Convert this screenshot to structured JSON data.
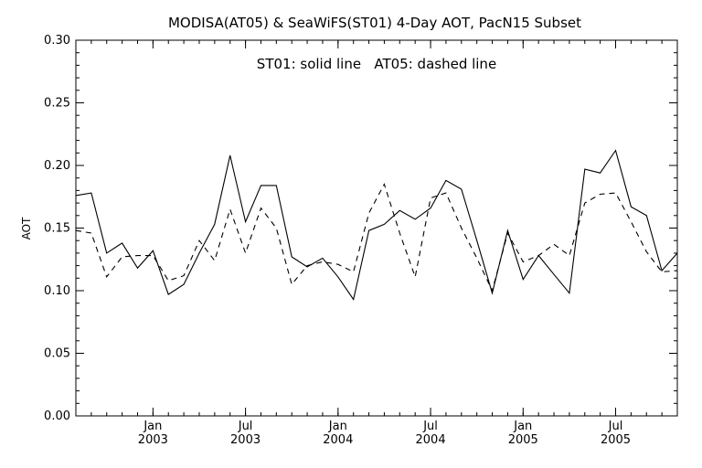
{
  "chart_data": {
    "type": "line",
    "title": "MODISA(AT05) & SeaWiFS(ST01) 4-Day AOT, PacN15 Subset",
    "annotation": "ST01: solid line   AT05: dashed line",
    "xlabel": "",
    "ylabel": "AOT",
    "ylim": [
      0.0,
      0.3
    ],
    "xlim": [
      "2002-08",
      "2005-11"
    ],
    "grid": false,
    "y_ticks": [
      "0.00",
      "0.05",
      "0.10",
      "0.15",
      "0.20",
      "0.25",
      "0.30"
    ],
    "x_ticks": [
      {
        "month": "Jan",
        "year": "2003",
        "x": "2003-01"
      },
      {
        "month": "Jul",
        "year": "2003",
        "x": "2003-07"
      },
      {
        "month": "Jan",
        "year": "2004",
        "x": "2004-01"
      },
      {
        "month": "Jul",
        "year": "2004",
        "x": "2004-07"
      },
      {
        "month": "Jan",
        "year": "2005",
        "x": "2005-01"
      },
      {
        "month": "Jul",
        "year": "2005",
        "x": "2005-07"
      }
    ],
    "series": [
      {
        "name": "ST01",
        "style": "solid",
        "x": [
          "2002-08",
          "2002-09",
          "2002-10",
          "2002-11",
          "2002-12",
          "2003-01",
          "2003-02",
          "2003-03",
          "2003-04",
          "2003-05",
          "2003-06",
          "2003-07",
          "2003-08",
          "2003-09",
          "2003-10",
          "2003-11",
          "2003-12",
          "2004-01",
          "2004-02",
          "2004-03",
          "2004-04",
          "2004-05",
          "2004-06",
          "2004-07",
          "2004-08",
          "2004-09",
          "2004-10",
          "2004-11",
          "2004-12",
          "2005-01",
          "2005-02",
          "2005-03",
          "2005-04",
          "2005-05",
          "2005-06",
          "2005-07",
          "2005-08",
          "2005-09",
          "2005-10",
          "2005-11"
        ],
        "values": [
          0.176,
          0.178,
          0.13,
          0.138,
          0.118,
          0.132,
          0.097,
          0.105,
          0.13,
          0.153,
          0.208,
          0.155,
          0.184,
          0.184,
          0.127,
          0.119,
          0.126,
          0.111,
          0.093,
          0.148,
          0.153,
          0.164,
          0.157,
          0.166,
          0.188,
          0.181,
          0.14,
          0.098,
          0.148,
          0.109,
          0.128,
          0.113,
          0.098,
          0.197,
          0.194,
          0.212,
          0.167,
          0.16,
          0.116,
          0.13
        ]
      },
      {
        "name": "AT05",
        "style": "dashed",
        "x": [
          "2002-08",
          "2002-09",
          "2002-10",
          "2002-11",
          "2002-12",
          "2003-01",
          "2003-02",
          "2003-03",
          "2003-04",
          "2003-05",
          "2003-06",
          "2003-07",
          "2003-08",
          "2003-09",
          "2003-10",
          "2003-11",
          "2003-12",
          "2004-01",
          "2004-02",
          "2004-03",
          "2004-04",
          "2004-05",
          "2004-06",
          "2004-07",
          "2004-08",
          "2004-09",
          "2004-10",
          "2004-11",
          "2004-12",
          "2005-01",
          "2005-02",
          "2005-03",
          "2005-04",
          "2005-05",
          "2005-06",
          "2005-07",
          "2005-08",
          "2005-09",
          "2005-10",
          "2005-11"
        ],
        "values": [
          0.148,
          0.146,
          0.111,
          0.127,
          0.128,
          0.128,
          0.108,
          0.112,
          0.14,
          0.124,
          0.165,
          0.13,
          0.166,
          0.15,
          0.105,
          0.12,
          0.123,
          0.121,
          0.115,
          0.162,
          0.185,
          0.146,
          0.111,
          0.174,
          0.178,
          0.15,
          0.126,
          0.1,
          0.146,
          0.123,
          0.128,
          0.137,
          0.128,
          0.17,
          0.177,
          0.178,
          0.155,
          0.131,
          0.115,
          0.116
        ]
      }
    ]
  }
}
